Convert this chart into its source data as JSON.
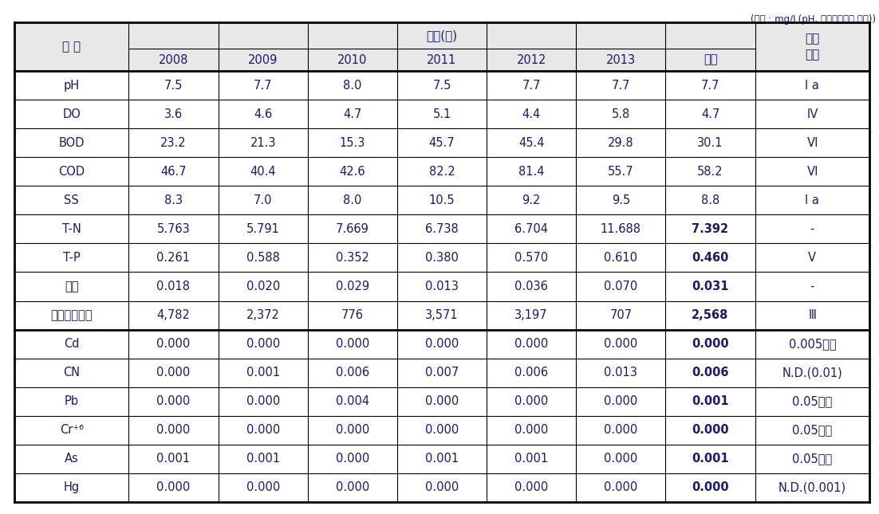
{
  "unit_text": "(단위 : mg/L(pH, 총대장균균수 제외))",
  "header_col0": "구 분",
  "header_year_span": "연도(년)",
  "header_env": "환경\n기준",
  "header_years": [
    "2008",
    "2009",
    "2010",
    "2011",
    "2012",
    "2013",
    "평균"
  ],
  "rows": [
    [
      "pH",
      "7.5",
      "7.7",
      "8.0",
      "7.5",
      "7.7",
      "7.7",
      "7.7",
      "I a"
    ],
    [
      "DO",
      "3.6",
      "4.6",
      "4.7",
      "5.1",
      "4.4",
      "5.8",
      "4.7",
      "Ⅳ"
    ],
    [
      "BOD",
      "23.2",
      "21.3",
      "15.3",
      "45.7",
      "45.4",
      "29.8",
      "30.1",
      "Ⅵ"
    ],
    [
      "COD",
      "46.7",
      "40.4",
      "42.6",
      "82.2",
      "81.4",
      "55.7",
      "58.2",
      "Ⅵ"
    ],
    [
      "SS",
      "8.3",
      "7.0",
      "8.0",
      "10.5",
      "9.2",
      "9.5",
      "8.8",
      "I a"
    ],
    [
      "T-N",
      "5.763",
      "5.791",
      "7.669",
      "6.738",
      "6.704",
      "11.688",
      "7.392",
      "-"
    ],
    [
      "T-P",
      "0.261",
      "0.588",
      "0.352",
      "0.380",
      "0.570",
      "0.610",
      "0.460",
      "V"
    ],
    [
      "페놀",
      "0.018",
      "0.020",
      "0.029",
      "0.013",
      "0.036",
      "0.070",
      "0.031",
      "-"
    ],
    [
      "총대장균균수",
      "4,782",
      "2,372",
      "776",
      "3,571",
      "3,197",
      "707",
      "2,568",
      "Ⅲ"
    ],
    [
      "Cd",
      "0.000",
      "0.000",
      "0.000",
      "0.000",
      "0.000",
      "0.000",
      "0.000",
      "0.005이하"
    ],
    [
      "CN",
      "0.000",
      "0.001",
      "0.006",
      "0.007",
      "0.006",
      "0.013",
      "0.006",
      "N.D.(0.01)"
    ],
    [
      "Pb",
      "0.000",
      "0.000",
      "0.004",
      "0.000",
      "0.000",
      "0.000",
      "0.001",
      "0.05이하"
    ],
    [
      "Cr⁺⁶",
      "0.000",
      "0.000",
      "0.000",
      "0.000",
      "0.000",
      "0.000",
      "0.000",
      "0.05이하"
    ],
    [
      "As",
      "0.001",
      "0.001",
      "0.000",
      "0.001",
      "0.001",
      "0.000",
      "0.001",
      "0.05이하"
    ],
    [
      "Hg",
      "0.000",
      "0.000",
      "0.000",
      "0.000",
      "0.000",
      "0.000",
      "0.000",
      "N.D.(0.001)"
    ]
  ],
  "bold_avg_rows": [
    5,
    6,
    7,
    8,
    9,
    10,
    11,
    12,
    13,
    14
  ],
  "text_color": "#1a1a6e",
  "bg_color": "#ffffff",
  "header_bg": "#e8e8e8",
  "font_size": 10.5
}
